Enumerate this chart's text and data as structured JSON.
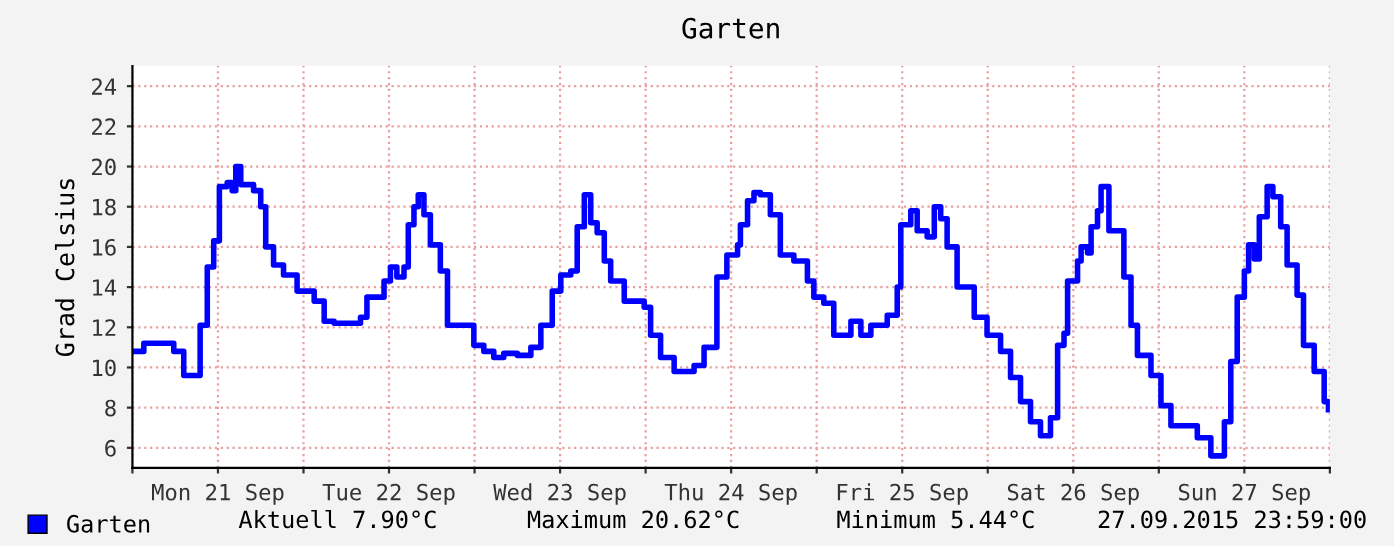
{
  "chart_data": {
    "type": "step",
    "title": "Garten",
    "ylabel": "Grad Celsius",
    "x": [
      "2015-09-21T00:12",
      "2015-09-21T01:36",
      "2015-09-21T04:24",
      "2015-09-21T05:48",
      "2015-09-21T07:12",
      "2015-09-21T08:24",
      "2015-09-21T09:30",
      "2015-09-21T10:30",
      "2015-09-21T11:24",
      "2015-09-21T12:12",
      "2015-09-21T13:18",
      "2015-09-21T14:00",
      "2015-09-21T14:30",
      "2015-09-21T15:12",
      "2015-09-21T17:00",
      "2015-09-21T18:00",
      "2015-09-21T18:42",
      "2015-09-21T19:48",
      "2015-09-21T21:12",
      "2015-09-21T23:06",
      "2015-09-22T01:30",
      "2015-09-22T02:54",
      "2015-09-22T04:18",
      "2015-09-22T06:36",
      "2015-09-22T08:00",
      "2015-09-22T08:54",
      "2015-09-22T11:18",
      "2015-09-22T12:12",
      "2015-09-22T13:06",
      "2015-09-22T14:06",
      "2015-09-22T14:42",
      "2015-09-22T15:30",
      "2015-09-22T16:06",
      "2015-09-22T16:54",
      "2015-09-22T17:48",
      "2015-09-22T19:12",
      "2015-09-22T20:12",
      "2015-09-22T22:30",
      "2015-09-22T23:54",
      "2015-09-23T01:18",
      "2015-09-23T02:42",
      "2015-09-23T04:06",
      "2015-09-23T06:00",
      "2015-09-23T07:54",
      "2015-09-23T09:18",
      "2015-09-23T10:54",
      "2015-09-23T12:06",
      "2015-09-23T13:30",
      "2015-09-23T14:24",
      "2015-09-23T15:24",
      "2015-09-23T16:18",
      "2015-09-23T17:12",
      "2015-09-23T18:12",
      "2015-09-23T19:06",
      "2015-09-23T21:00",
      "2015-09-23T23:48",
      "2015-09-24T00:42",
      "2015-09-24T02:06",
      "2015-09-24T04:00",
      "2015-09-24T06:48",
      "2015-09-24T08:12",
      "2015-09-24T10:00",
      "2015-09-24T11:24",
      "2015-09-24T12:54",
      "2015-09-24T13:18",
      "2015-09-24T14:18",
      "2015-09-24T15:12",
      "2015-09-24T16:06",
      "2015-09-24T17:30",
      "2015-09-24T18:54",
      "2015-09-24T20:48",
      "2015-09-24T22:42",
      "2015-09-24T23:36",
      "2015-09-25T01:00",
      "2015-09-25T02:24",
      "2015-09-25T03:48",
      "2015-09-25T04:48",
      "2015-09-25T06:12",
      "2015-09-25T07:36",
      "2015-09-25T09:54",
      "2015-09-25T11:18",
      "2015-09-25T11:48",
      "2015-09-25T13:12",
      "2015-09-25T14:06",
      "2015-09-25T15:30",
      "2015-09-25T16:30",
      "2015-09-25T17:24",
      "2015-09-25T18:18",
      "2015-09-25T19:42",
      "2015-09-25T22:06",
      "2015-09-25T23:54",
      "2015-09-26T01:48",
      "2015-09-26T03:12",
      "2015-09-26T04:36",
      "2015-09-26T06:00",
      "2015-09-26T07:24",
      "2015-09-26T08:48",
      "2015-09-26T09:48",
      "2015-09-26T10:42",
      "2015-09-26T11:12",
      "2015-09-26T12:36",
      "2015-09-26T13:06",
      "2015-09-26T14:00",
      "2015-09-26T14:30",
      "2015-09-26T15:24",
      "2015-09-26T15:54",
      "2015-09-26T16:36",
      "2015-09-26T17:00",
      "2015-09-26T18:12",
      "2015-09-26T19:06",
      "2015-09-26T20:06",
      "2015-09-26T21:00",
      "2015-09-26T22:54",
      "2015-09-27T00:18",
      "2015-09-27T01:42",
      "2015-09-27T04:30",
      "2015-09-27T05:24",
      "2015-09-27T07:18",
      "2015-09-27T08:12",
      "2015-09-27T09:12",
      "2015-09-27T10:06",
      "2015-09-27T11:00",
      "2015-09-27T12:00",
      "2015-09-27T12:36",
      "2015-09-27T13:24",
      "2015-09-27T14:06",
      "2015-09-27T15:12",
      "2015-09-27T16:00",
      "2015-09-27T17:06",
      "2015-09-27T18:00",
      "2015-09-27T19:24",
      "2015-09-27T20:18",
      "2015-09-27T21:48",
      "2015-09-27T23:12",
      "2015-09-27T23:48"
    ],
    "series": [
      {
        "name": "Garten",
        "color": "#0000ff",
        "values": [
          10.8,
          11.2,
          11.2,
          10.8,
          9.6,
          9.6,
          12.1,
          15.0,
          16.3,
          19.0,
          19.2,
          18.8,
          20.0,
          19.1,
          18.8,
          18.0,
          16.0,
          15.1,
          14.6,
          13.8,
          13.3,
          12.3,
          12.2,
          12.2,
          12.5,
          13.5,
          14.3,
          15.0,
          14.5,
          15.0,
          17.1,
          18.0,
          18.6,
          17.6,
          16.1,
          14.8,
          12.1,
          12.1,
          11.1,
          10.8,
          10.5,
          10.7,
          10.6,
          11.0,
          12.1,
          13.8,
          14.6,
          14.8,
          17.0,
          18.6,
          17.2,
          16.7,
          15.3,
          14.3,
          13.3,
          13.0,
          11.6,
          10.5,
          9.8,
          10.1,
          11.0,
          14.5,
          15.6,
          16.1,
          17.1,
          18.3,
          18.7,
          18.6,
          17.6,
          15.6,
          15.3,
          14.3,
          13.5,
          13.2,
          11.6,
          11.6,
          12.3,
          11.6,
          12.1,
          12.6,
          14.0,
          17.1,
          17.8,
          16.8,
          16.5,
          18.0,
          17.4,
          16.0,
          14.0,
          12.5,
          11.6,
          10.8,
          9.5,
          8.3,
          7.3,
          6.6,
          7.5,
          11.1,
          11.7,
          14.3,
          15.3,
          16.0,
          15.7,
          17.0,
          17.8,
          19.0,
          19.0,
          16.8,
          16.8,
          14.5,
          12.1,
          10.6,
          9.6,
          8.1,
          7.1,
          7.1,
          6.5,
          5.6,
          5.6,
          7.3,
          10.3,
          13.5,
          14.8,
          16.1,
          15.4,
          17.5,
          19.0,
          18.5,
          17.0,
          15.1,
          13.6,
          11.1,
          9.8,
          8.3,
          7.9
        ]
      }
    ],
    "xlim": [
      "2015-09-21T00:00",
      "2015-09-28T00:00"
    ],
    "xticks": [
      {
        "value": "2015-09-21T00:00",
        "label": null
      },
      {
        "value": "2015-09-21T12:00",
        "label": "Mon 21 Sep"
      },
      {
        "value": "2015-09-22T00:00",
        "label": null
      },
      {
        "value": "2015-09-22T12:00",
        "label": "Tue 22 Sep"
      },
      {
        "value": "2015-09-23T00:00",
        "label": null
      },
      {
        "value": "2015-09-23T12:00",
        "label": "Wed 23 Sep"
      },
      {
        "value": "2015-09-24T00:00",
        "label": null
      },
      {
        "value": "2015-09-24T12:00",
        "label": "Thu 24 Sep"
      },
      {
        "value": "2015-09-25T00:00",
        "label": null
      },
      {
        "value": "2015-09-25T12:00",
        "label": "Fri 25 Sep"
      },
      {
        "value": "2015-09-26T00:00",
        "label": null
      },
      {
        "value": "2015-09-26T12:00",
        "label": "Sat 26 Sep"
      },
      {
        "value": "2015-09-27T00:00",
        "label": null
      },
      {
        "value": "2015-09-27T12:00",
        "label": "Sun 27 Sep"
      },
      {
        "value": "2015-09-28T00:00",
        "label": null
      }
    ],
    "ylim": [
      5,
      25
    ],
    "yticks": [
      6,
      8,
      10,
      12,
      14,
      16,
      18,
      20,
      22,
      24
    ],
    "grid": true,
    "legend": "bottom",
    "annotations": [
      "Aktuell 7.90°C",
      "Maximum 20.62°C",
      "Minimum 5.44°C",
      "27.09.2015 23:59:00"
    ]
  }
}
